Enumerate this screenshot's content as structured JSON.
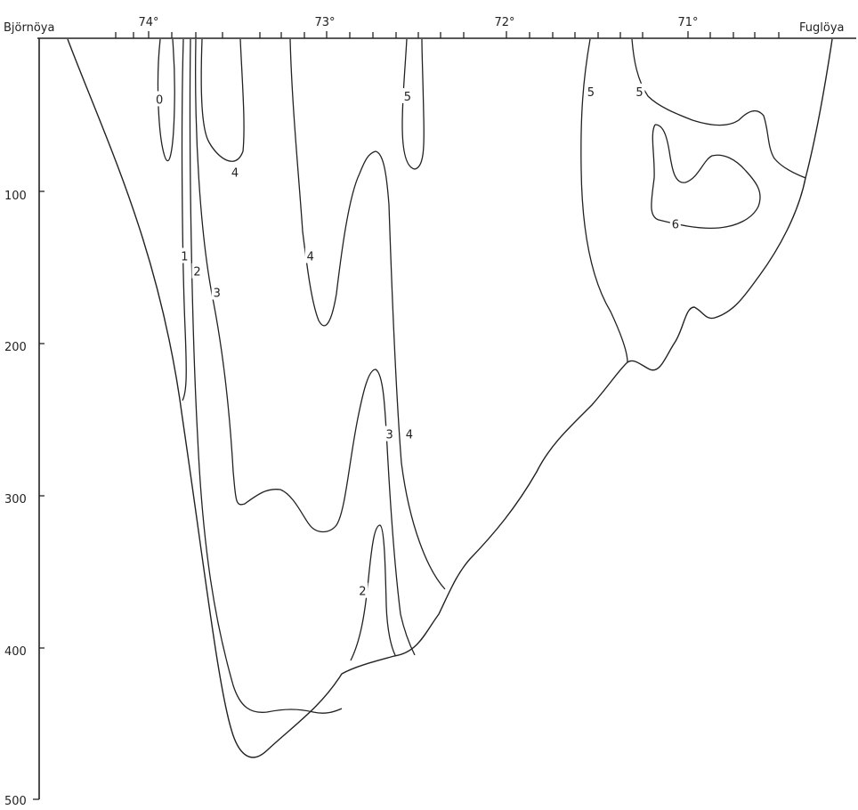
{
  "chart_data": {
    "type": "contour",
    "endpoints": {
      "left": "Björnöya",
      "right": "Fuglöya"
    },
    "x_axis": {
      "position": "top",
      "tick_labels": [
        "74°",
        "73°",
        "72°",
        "71°"
      ],
      "ticks": [
        74,
        73,
        72,
        71
      ],
      "range": [
        74.6,
        70.3
      ]
    },
    "y_axis": {
      "position": "left",
      "tick_labels": [
        "100",
        "200",
        "300",
        "400",
        "500"
      ],
      "ticks": [
        100,
        200,
        300,
        400,
        500
      ],
      "range": [
        0,
        500
      ],
      "inverted": true
    },
    "contour_labels": [
      {
        "text": "0",
        "lat": 73.94,
        "depth": 40
      },
      {
        "text": "1",
        "lat": 73.8,
        "depth": 143
      },
      {
        "text": "2",
        "lat": 73.73,
        "depth": 153
      },
      {
        "text": "3",
        "lat": 73.62,
        "depth": 167
      },
      {
        "text": "4",
        "lat": 73.52,
        "depth": 88
      },
      {
        "text": "4",
        "lat": 73.1,
        "depth": 143
      },
      {
        "text": "5",
        "lat": 72.56,
        "depth": 38
      },
      {
        "text": "3",
        "lat": 72.66,
        "depth": 260
      },
      {
        "text": "4",
        "lat": 72.55,
        "depth": 260
      },
      {
        "text": "2",
        "lat": 72.81,
        "depth": 363
      },
      {
        "text": "5",
        "lat": 71.54,
        "depth": 35
      },
      {
        "text": "5",
        "lat": 71.27,
        "depth": 35
      },
      {
        "text": "6",
        "lat": 71.07,
        "depth": 122
      }
    ],
    "grid": false
  }
}
